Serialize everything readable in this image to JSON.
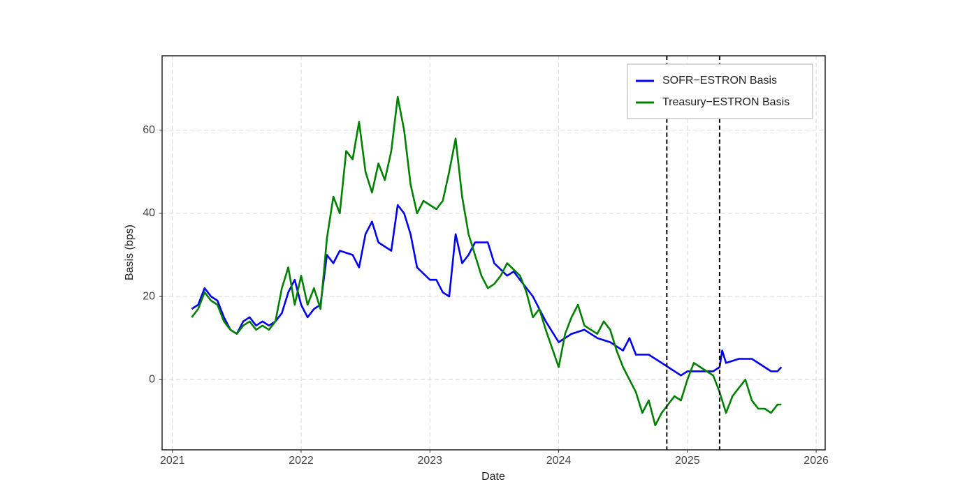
{
  "chart_data": {
    "type": "line",
    "x_label": "Date",
    "y_label": "Basis (bps)",
    "xlim": [
      2020.92,
      2026.07
    ],
    "ylim": [
      -16.9,
      77.9
    ],
    "xticks": [
      2021,
      2022,
      2023,
      2024,
      2025,
      2026
    ],
    "yticks": [
      0,
      20,
      40,
      60
    ],
    "grid": true,
    "legend": "upper right",
    "vlines": [
      2024.84,
      2025.25
    ],
    "series": [
      {
        "name": "SOFR−ESTRON Basis",
        "color": "#0000ee",
        "x": [
          2021.15,
          2021.2,
          2021.25,
          2021.3,
          2021.35,
          2021.4,
          2021.45,
          2021.5,
          2021.55,
          2021.6,
          2021.65,
          2021.7,
          2021.75,
          2021.8,
          2021.85,
          2021.9,
          2021.95,
          2022.0,
          2022.05,
          2022.1,
          2022.15,
          2022.2,
          2022.25,
          2022.3,
          2022.4,
          2022.45,
          2022.5,
          2022.55,
          2022.6,
          2022.7,
          2022.75,
          2022.8,
          2022.85,
          2022.9,
          2023.0,
          2023.05,
          2023.1,
          2023.15,
          2023.2,
          2023.25,
          2023.3,
          2023.35,
          2023.45,
          2023.5,
          2023.6,
          2023.65,
          2023.7,
          2023.8,
          2023.9,
          2024.0,
          2024.1,
          2024.2,
          2024.3,
          2024.4,
          2024.5,
          2024.55,
          2024.6,
          2024.7,
          2024.8,
          2024.85,
          2024.95,
          2025.0,
          2025.1,
          2025.2,
          2025.25,
          2025.27,
          2025.3,
          2025.4,
          2025.5,
          2025.6,
          2025.65,
          2025.7,
          2025.73
        ],
        "values": [
          17,
          18,
          22,
          20,
          19,
          15,
          12,
          11,
          14,
          15,
          13,
          14,
          13,
          14,
          16,
          21,
          24,
          18,
          15,
          17,
          18,
          30,
          28,
          31,
          30,
          27,
          35,
          38,
          33,
          31,
          42,
          40,
          35,
          27,
          24,
          24,
          21,
          20,
          35,
          28,
          30,
          33,
          33,
          28,
          25,
          26,
          24,
          20,
          14,
          9,
          11,
          12,
          10,
          9,
          7,
          10,
          6,
          6,
          4,
          3,
          1,
          2,
          2,
          2,
          3,
          7,
          4,
          5,
          5,
          3,
          2,
          2,
          3
        ]
      },
      {
        "name": "Treasury−ESTRON Basis",
        "color": "#008000",
        "x": [
          2021.15,
          2021.2,
          2021.25,
          2021.3,
          2021.35,
          2021.4,
          2021.45,
          2021.5,
          2021.55,
          2021.6,
          2021.65,
          2021.7,
          2021.75,
          2021.8,
          2021.85,
          2021.9,
          2021.95,
          2022.0,
          2022.05,
          2022.1,
          2022.15,
          2022.2,
          2022.25,
          2022.3,
          2022.35,
          2022.4,
          2022.45,
          2022.5,
          2022.55,
          2022.6,
          2022.65,
          2022.7,
          2022.75,
          2022.8,
          2022.85,
          2022.9,
          2022.95,
          2023.0,
          2023.05,
          2023.1,
          2023.15,
          2023.2,
          2023.25,
          2023.3,
          2023.35,
          2023.4,
          2023.45,
          2023.5,
          2023.55,
          2023.6,
          2023.7,
          2023.75,
          2023.8,
          2023.85,
          2023.9,
          2024.0,
          2024.05,
          2024.1,
          2024.15,
          2024.2,
          2024.3,
          2024.35,
          2024.4,
          2024.45,
          2024.5,
          2024.55,
          2024.6,
          2024.65,
          2024.7,
          2024.75,
          2024.8,
          2024.85,
          2024.9,
          2024.95,
          2025.0,
          2025.05,
          2025.1,
          2025.15,
          2025.2,
          2025.25,
          2025.3,
          2025.35,
          2025.4,
          2025.45,
          2025.5,
          2025.55,
          2025.6,
          2025.65,
          2025.7,
          2025.73
        ],
        "values": [
          15,
          17,
          21,
          19,
          18,
          14,
          12,
          11,
          13,
          14,
          12,
          13,
          12,
          14,
          22,
          27,
          18,
          25,
          18,
          22,
          17,
          34,
          44,
          40,
          55,
          53,
          62,
          50,
          45,
          52,
          48,
          55,
          68,
          60,
          47,
          40,
          43,
          42,
          41,
          43,
          50,
          58,
          44,
          35,
          30,
          25,
          22,
          23,
          25,
          28,
          25,
          21,
          15,
          17,
          12,
          3,
          11,
          15,
          18,
          13,
          11,
          14,
          12,
          7,
          3,
          0,
          -3,
          -8,
          -5,
          -11,
          -8,
          -6,
          -4,
          -5,
          0,
          4,
          3,
          2,
          1,
          -3,
          -8,
          -4,
          -2,
          0,
          -5,
          -7,
          -7,
          -8,
          -6,
          -6
        ]
      }
    ]
  }
}
